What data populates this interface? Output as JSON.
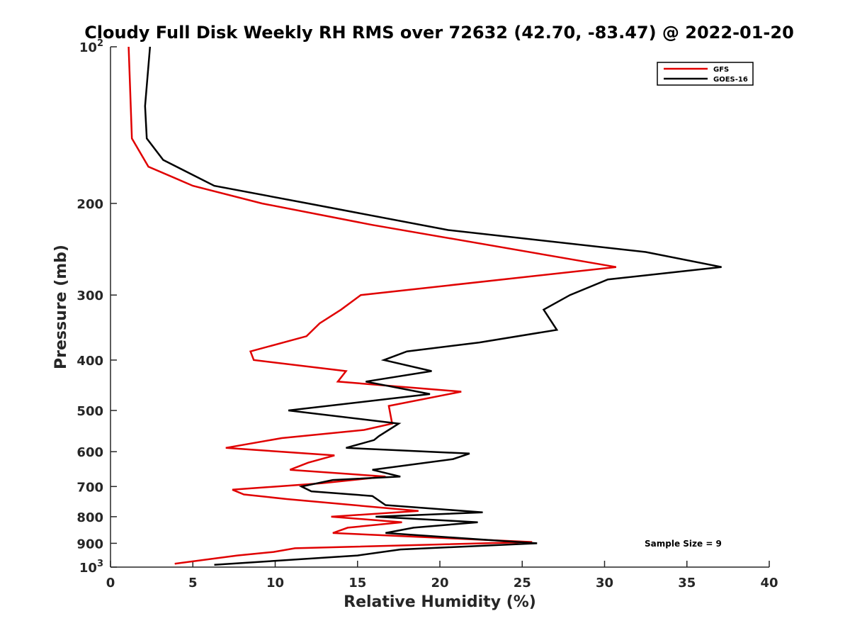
{
  "chart_data": {
    "type": "line",
    "title": "Cloudy Full Disk Weekly RH RMS over 72632 (42.70, -83.47) @ 2022-01-20",
    "xlabel": "Relative Humidity (%)",
    "ylabel": "Pressure (mb)",
    "xlim": [
      0,
      40
    ],
    "ylim": [
      100,
      1000
    ],
    "y_scale": "log",
    "y_reversed": true,
    "x_ticks": [
      0,
      5,
      10,
      15,
      20,
      25,
      30,
      35,
      40
    ],
    "x_tick_labels": [
      "0",
      "5",
      "10",
      "15",
      "20",
      "25",
      "30",
      "35",
      "40"
    ],
    "y_ticks": [
      100,
      200,
      300,
      400,
      500,
      600,
      700,
      800,
      900,
      1000
    ],
    "y_tick_labels": [
      {
        "base": "10",
        "exp": "2"
      },
      {
        "base": "200",
        "exp": ""
      },
      {
        "base": "300",
        "exp": ""
      },
      {
        "base": "400",
        "exp": ""
      },
      {
        "base": "500",
        "exp": ""
      },
      {
        "base": "600",
        "exp": ""
      },
      {
        "base": "700",
        "exp": ""
      },
      {
        "base": "800",
        "exp": ""
      },
      {
        "base": "900",
        "exp": ""
      },
      {
        "base": "10",
        "exp": "3"
      }
    ],
    "grid": false,
    "legend": "top-right",
    "annotation": "Sample Size = 9",
    "series": [
      {
        "name": "GFS",
        "color": "#e00000",
        "points": [
          [
            1.1,
            100
          ],
          [
            1.3,
            150
          ],
          [
            2.3,
            170
          ],
          [
            5.0,
            185
          ],
          [
            9.2,
            200
          ],
          [
            15.9,
            220
          ],
          [
            30.7,
            265
          ],
          [
            15.2,
            300
          ],
          [
            14.0,
            320
          ],
          [
            12.7,
            340
          ],
          [
            11.9,
            360
          ],
          [
            8.5,
            385
          ],
          [
            8.7,
            400
          ],
          [
            14.3,
            420
          ],
          [
            13.8,
            440
          ],
          [
            21.3,
            460
          ],
          [
            16.9,
            490
          ],
          [
            17.1,
            530
          ],
          [
            15.4,
            545
          ],
          [
            10.4,
            565
          ],
          [
            7.0,
            590
          ],
          [
            13.6,
            610
          ],
          [
            12.0,
            630
          ],
          [
            10.9,
            650
          ],
          [
            16.7,
            670
          ],
          [
            12.8,
            690
          ],
          [
            7.4,
            710
          ],
          [
            8.1,
            725
          ],
          [
            10.7,
            740
          ],
          [
            18.7,
            780
          ],
          [
            13.4,
            800
          ],
          [
            17.7,
            820
          ],
          [
            14.4,
            840
          ],
          [
            13.5,
            860
          ],
          [
            25.6,
            895
          ],
          [
            11.2,
            920
          ],
          [
            9.9,
            935
          ],
          [
            7.7,
            950
          ],
          [
            3.9,
            985
          ]
        ]
      },
      {
        "name": "GOES-16",
        "color": "#000000",
        "points": [
          [
            2.4,
            100
          ],
          [
            2.1,
            130
          ],
          [
            2.2,
            150
          ],
          [
            3.2,
            165
          ],
          [
            6.3,
            185
          ],
          [
            12.0,
            200
          ],
          [
            20.5,
            225
          ],
          [
            32.5,
            248
          ],
          [
            37.1,
            265
          ],
          [
            30.2,
            280
          ],
          [
            27.9,
            300
          ],
          [
            26.3,
            320
          ],
          [
            27.1,
            350
          ],
          [
            22.4,
            370
          ],
          [
            18.0,
            385
          ],
          [
            16.6,
            400
          ],
          [
            19.5,
            420
          ],
          [
            15.5,
            440
          ],
          [
            19.4,
            465
          ],
          [
            10.8,
            500
          ],
          [
            17.5,
            530
          ],
          [
            16.3,
            560
          ],
          [
            16.0,
            570
          ],
          [
            14.3,
            590
          ],
          [
            21.8,
            605
          ],
          [
            20.8,
            620
          ],
          [
            15.9,
            650
          ],
          [
            17.6,
            670
          ],
          [
            13.5,
            680
          ],
          [
            11.6,
            700
          ],
          [
            12.2,
            715
          ],
          [
            15.9,
            730
          ],
          [
            16.7,
            760
          ],
          [
            22.6,
            785
          ],
          [
            16.1,
            800
          ],
          [
            22.3,
            820
          ],
          [
            18.4,
            840
          ],
          [
            16.7,
            860
          ],
          [
            25.9,
            900
          ],
          [
            17.6,
            925
          ],
          [
            15.0,
            950
          ],
          [
            6.3,
            990
          ]
        ]
      }
    ]
  }
}
